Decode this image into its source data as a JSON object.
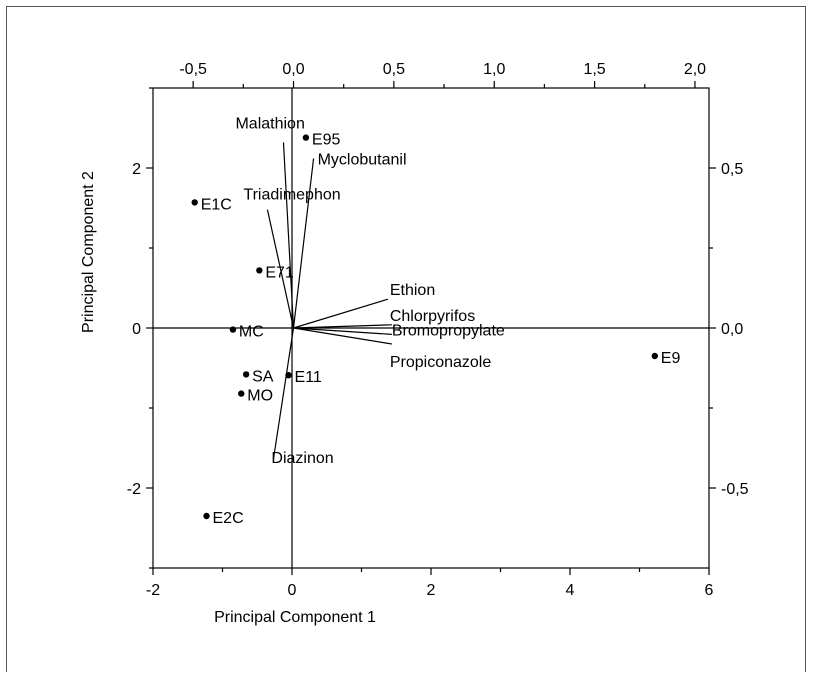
{
  "chart_data": {
    "type": "scatter",
    "subtype": "biplot",
    "xlabel": "Principal Component 1",
    "ylabel": "Principal Component 2",
    "xlim": [
      -2,
      6
    ],
    "ylim": [
      -3,
      3
    ],
    "x_ticks": [
      -2,
      0,
      2,
      4,
      6
    ],
    "y_ticks": [
      -2,
      0,
      2
    ],
    "top_axis": {
      "lim": [
        -0.7,
        2.07
      ],
      "ticks": [
        "-0,5",
        "0,0",
        "0,5",
        "1,0",
        "1,5",
        "2,0"
      ],
      "tick_values": [
        -0.5,
        0,
        0.5,
        1.0,
        1.5,
        2.0
      ]
    },
    "right_axis": {
      "lim": [
        -0.75,
        0.75
      ],
      "ticks": [
        "0,5",
        "0,0",
        "-0,5"
      ],
      "tick_values": [
        0.5,
        0,
        -0.5
      ]
    },
    "grid": false,
    "zero_lines": true,
    "points": [
      {
        "label": "E95",
        "x": 0.2,
        "y": 2.38
      },
      {
        "label": "E1C",
        "x": -1.4,
        "y": 1.57
      },
      {
        "label": "E71",
        "x": -0.47,
        "y": 0.72
      },
      {
        "label": "MC",
        "x": -0.85,
        "y": -0.02
      },
      {
        "label": "SA",
        "x": -0.66,
        "y": -0.58
      },
      {
        "label": "E11",
        "x": -0.05,
        "y": -0.59
      },
      {
        "label": "MO",
        "x": -0.73,
        "y": -0.82
      },
      {
        "label": "E2C",
        "x": -1.23,
        "y": -2.35
      },
      {
        "label": "E9",
        "x": 5.22,
        "y": -0.35
      }
    ],
    "loadings": [
      {
        "label": "Malathion",
        "x": -0.05,
        "y": 0.58
      },
      {
        "label": "Myclobutanil",
        "x": 0.1,
        "y": 0.53
      },
      {
        "label": "Triadimephon",
        "x": -0.13,
        "y": 0.37
      },
      {
        "label": "Ethion",
        "x": 0.47,
        "y": 0.09
      },
      {
        "label": "Chlorpyrifos",
        "x": 0.49,
        "y": 0.01
      },
      {
        "label": "Bromopropylate",
        "x": 0.49,
        "y": -0.02
      },
      {
        "label": "Propiconazole",
        "x": 0.49,
        "y": -0.05
      },
      {
        "label": "Diazinon",
        "x": -0.1,
        "y": -0.41
      }
    ]
  }
}
